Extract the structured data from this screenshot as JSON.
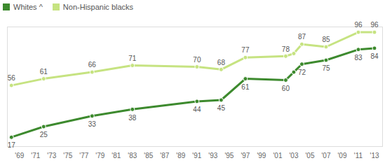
{
  "chart_data": {
    "type": "line",
    "x": [
      1968,
      1972,
      1978,
      1983,
      1991,
      1994,
      1997,
      2002,
      2003,
      2004,
      2007,
      2011,
      2013
    ],
    "series": [
      {
        "name": "Whites ^",
        "color": "#3d8a2e",
        "marker": "circle",
        "values": [
          17,
          25,
          33,
          38,
          44,
          45,
          61,
          60,
          66,
          72,
          75,
          83,
          84
        ],
        "value_labels": [
          "17",
          "25",
          "33",
          "38",
          "44",
          "45",
          "61",
          "60",
          null,
          "72",
          "75",
          "83",
          "84"
        ]
      },
      {
        "name": "Non-Hispanic blacks",
        "color": "#c6e381",
        "marker": "circle",
        "values": [
          56,
          61,
          66,
          71,
          70,
          68,
          77,
          78,
          80,
          87,
          85,
          96,
          96
        ],
        "value_labels": [
          "56",
          "61",
          "66",
          "71",
          "70",
          "68",
          "77",
          "78",
          null,
          "87",
          "85",
          "96",
          "96"
        ]
      }
    ],
    "xlim": [
      1967.5,
      2014
    ],
    "xticks": [
      {
        "value": 1969,
        "label": "'69"
      },
      {
        "value": 1971,
        "label": "'71"
      },
      {
        "value": 1973,
        "label": "'73"
      },
      {
        "value": 1975,
        "label": "'75"
      },
      {
        "value": 1977,
        "label": "'77"
      },
      {
        "value": 1979,
        "label": "'79"
      },
      {
        "value": 1981,
        "label": "'81"
      },
      {
        "value": 1983,
        "label": "'83"
      },
      {
        "value": 1985,
        "label": "'85"
      },
      {
        "value": 1987,
        "label": "'87"
      },
      {
        "value": 1989,
        "label": "'89"
      },
      {
        "value": 1991,
        "label": "'91"
      },
      {
        "value": 1993,
        "label": "'93"
      },
      {
        "value": 1995,
        "label": "'95"
      },
      {
        "value": 1997,
        "label": "'97"
      },
      {
        "value": 1999,
        "label": "'99"
      },
      {
        "value": 2001,
        "label": "'01"
      },
      {
        "value": 2003,
        "label": "'03"
      },
      {
        "value": 2005,
        "label": "'05"
      },
      {
        "value": 2007,
        "label": "'07"
      },
      {
        "value": 2009,
        "label": "'09"
      },
      {
        "value": 2011,
        "label": "'11"
      },
      {
        "value": 2013,
        "label": "'13"
      }
    ],
    "ylim": [
      10,
      100
    ],
    "yticks": [],
    "tick_labels": "x",
    "grid": false,
    "legend": "top-left",
    "data_labels": true
  }
}
